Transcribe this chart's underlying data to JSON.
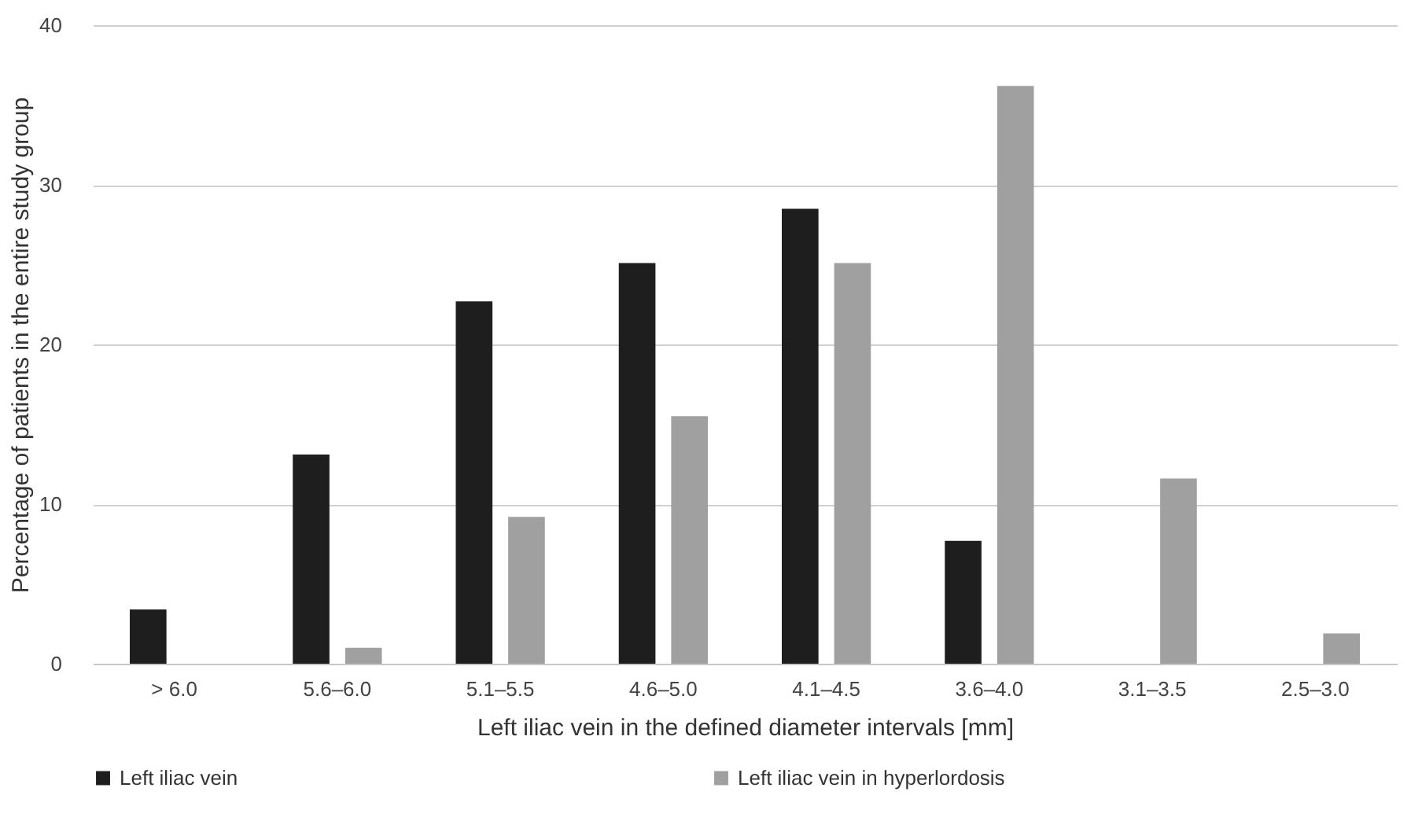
{
  "chart_data": {
    "type": "bar",
    "xlabel": "Left iliac vein in the defined diameter intervals [mm]",
    "ylabel": "Percentage of patients in the entire study  group",
    "categories": [
      "> 6.0",
      "5.6–6.0",
      "5.1–5.5",
      "4.6–5.0",
      "4.1–4.5",
      "3.6–4.0",
      "3.1–3.5",
      "2.5–3.0"
    ],
    "series": [
      {
        "name": "Left iliac vein",
        "color": "#1e1e1e",
        "values": [
          3.4,
          13.1,
          22.7,
          25.1,
          28.5,
          7.7,
          null,
          null
        ]
      },
      {
        "name": "Left iliac vein in hyperlordosis",
        "color": "#a0a0a0",
        "values": [
          null,
          1.0,
          9.2,
          15.5,
          25.1,
          36.2,
          11.6,
          1.9
        ]
      }
    ],
    "ylim": [
      0,
      40
    ],
    "yticks": [
      0,
      10,
      20,
      30,
      40
    ],
    "grid": "y",
    "legend": "bottom"
  }
}
